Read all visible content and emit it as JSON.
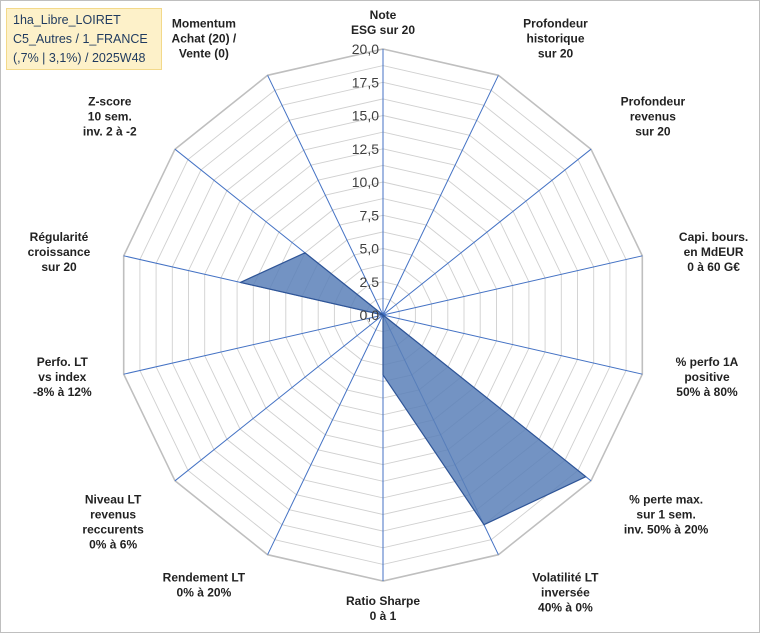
{
  "info_box": {
    "line1": "1ha_Libre_LOIRET",
    "line2": "C5_Autres / 1_FRANCE",
    "line3": "(,7% | 3,1%) / 2025W48"
  },
  "chart_data": {
    "type": "radar",
    "rmin": 0,
    "rmax": 20,
    "ticks": [
      "0,0",
      "2,5",
      "5,0",
      "7,5",
      "10,0",
      "12,5",
      "15,0",
      "17,5",
      "20,0"
    ],
    "axes": [
      [
        "Note",
        "ESG sur 20"
      ],
      [
        "Profondeur",
        "historique",
        "sur 20"
      ],
      [
        "Profondeur",
        "revenus",
        "sur 20"
      ],
      [
        "Capi. bours.",
        "en MdEUR",
        "0 à 60 G€"
      ],
      [
        "% perfo 1A",
        "positive",
        "50% à 80%"
      ],
      [
        "% perte max.",
        "sur 1 sem.",
        "inv. 50% à 20%"
      ],
      [
        "Volatilité LT",
        "inversée",
        "40% à 0%"
      ],
      [
        "Ratio Sharpe",
        "0 à 1"
      ],
      [
        "Rendement LT",
        "0% à 20%"
      ],
      [
        "Niveau LT",
        "revenus",
        "reccurents",
        "0% à 6%"
      ],
      [
        "Perfo. LT",
        "vs index",
        "-8% à 12%"
      ],
      [
        "Régularité",
        "croissance",
        "sur 20"
      ],
      [
        "Z-score",
        "10 sem.",
        "inv. 2 à -2"
      ],
      [
        "Momentum",
        "Achat (20) /",
        "Vente (0)"
      ]
    ],
    "series": [
      {
        "values": [
          0,
          0,
          0,
          0,
          0,
          19.5,
          17.5,
          4.5,
          0,
          0,
          0,
          11,
          7.5,
          0
        ]
      }
    ],
    "colors": {
      "fill": "#5b80b8",
      "fill_opacity": 0.85,
      "stroke": "#2f5597",
      "grid": "#d0d0d0",
      "spoke": "#4472c4",
      "outer_ring": "#bfbfbf"
    },
    "grid": true,
    "legend": "none"
  }
}
